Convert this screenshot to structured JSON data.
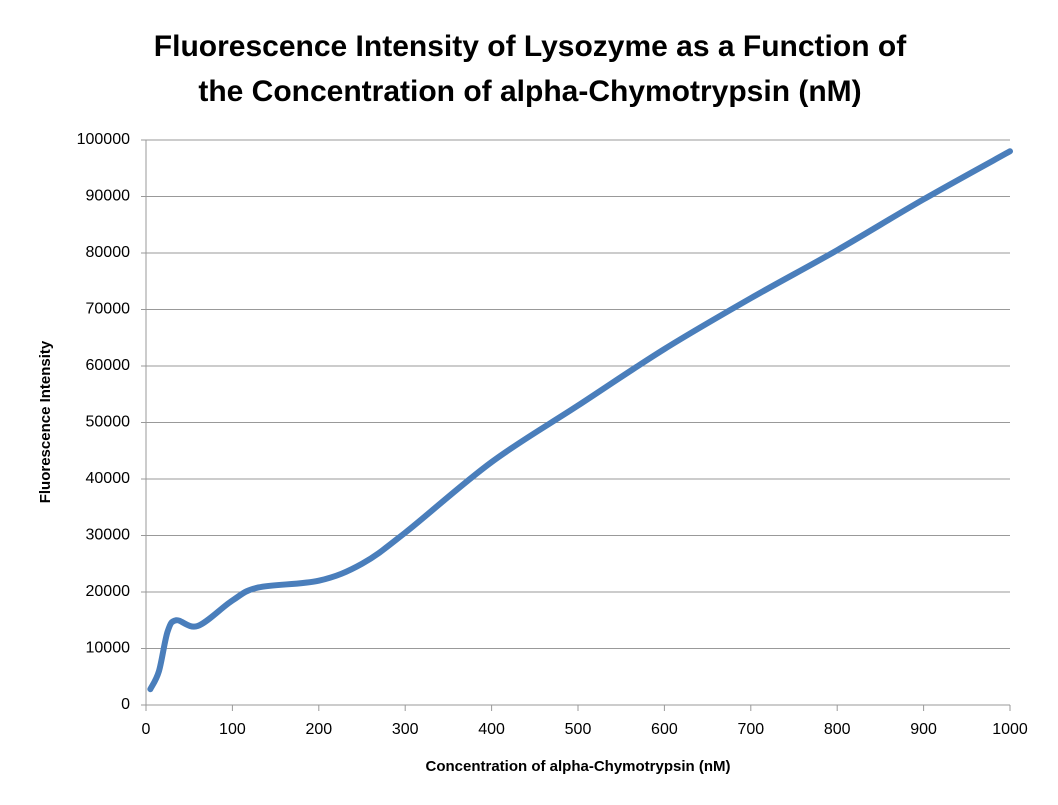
{
  "chart_data": {
    "type": "line",
    "title": [
      "Fluorescence Intensity of Lysozyme as a Function of",
      "the Concentration of alpha-Chymotrypsin (nM)"
    ],
    "x_label": "Concentration of alpha-Chymotrypsin (nM)",
    "y_label": "Fluorescence Intensity",
    "x": [
      5,
      15,
      25,
      35,
      60,
      100,
      130,
      200,
      250,
      300,
      400,
      500,
      600,
      700,
      800,
      900,
      1000
    ],
    "series": [
      {
        "name": "Fluorescence Intensity",
        "color": "#4a7ebb",
        "values": [
          2800,
          6000,
          13000,
          15000,
          14000,
          18500,
          20800,
          22000,
          25000,
          30500,
          43000,
          53000,
          63000,
          72000,
          80500,
          89500,
          98000
        ]
      }
    ],
    "xlim": [
      0,
      1000
    ],
    "xticks": [
      0,
      100,
      200,
      300,
      400,
      500,
      600,
      700,
      800,
      900,
      1000
    ],
    "ylim": [
      0,
      100000
    ],
    "yticks": [
      0,
      10000,
      20000,
      30000,
      40000,
      50000,
      60000,
      70000,
      80000,
      90000,
      100000
    ],
    "grid": true
  }
}
